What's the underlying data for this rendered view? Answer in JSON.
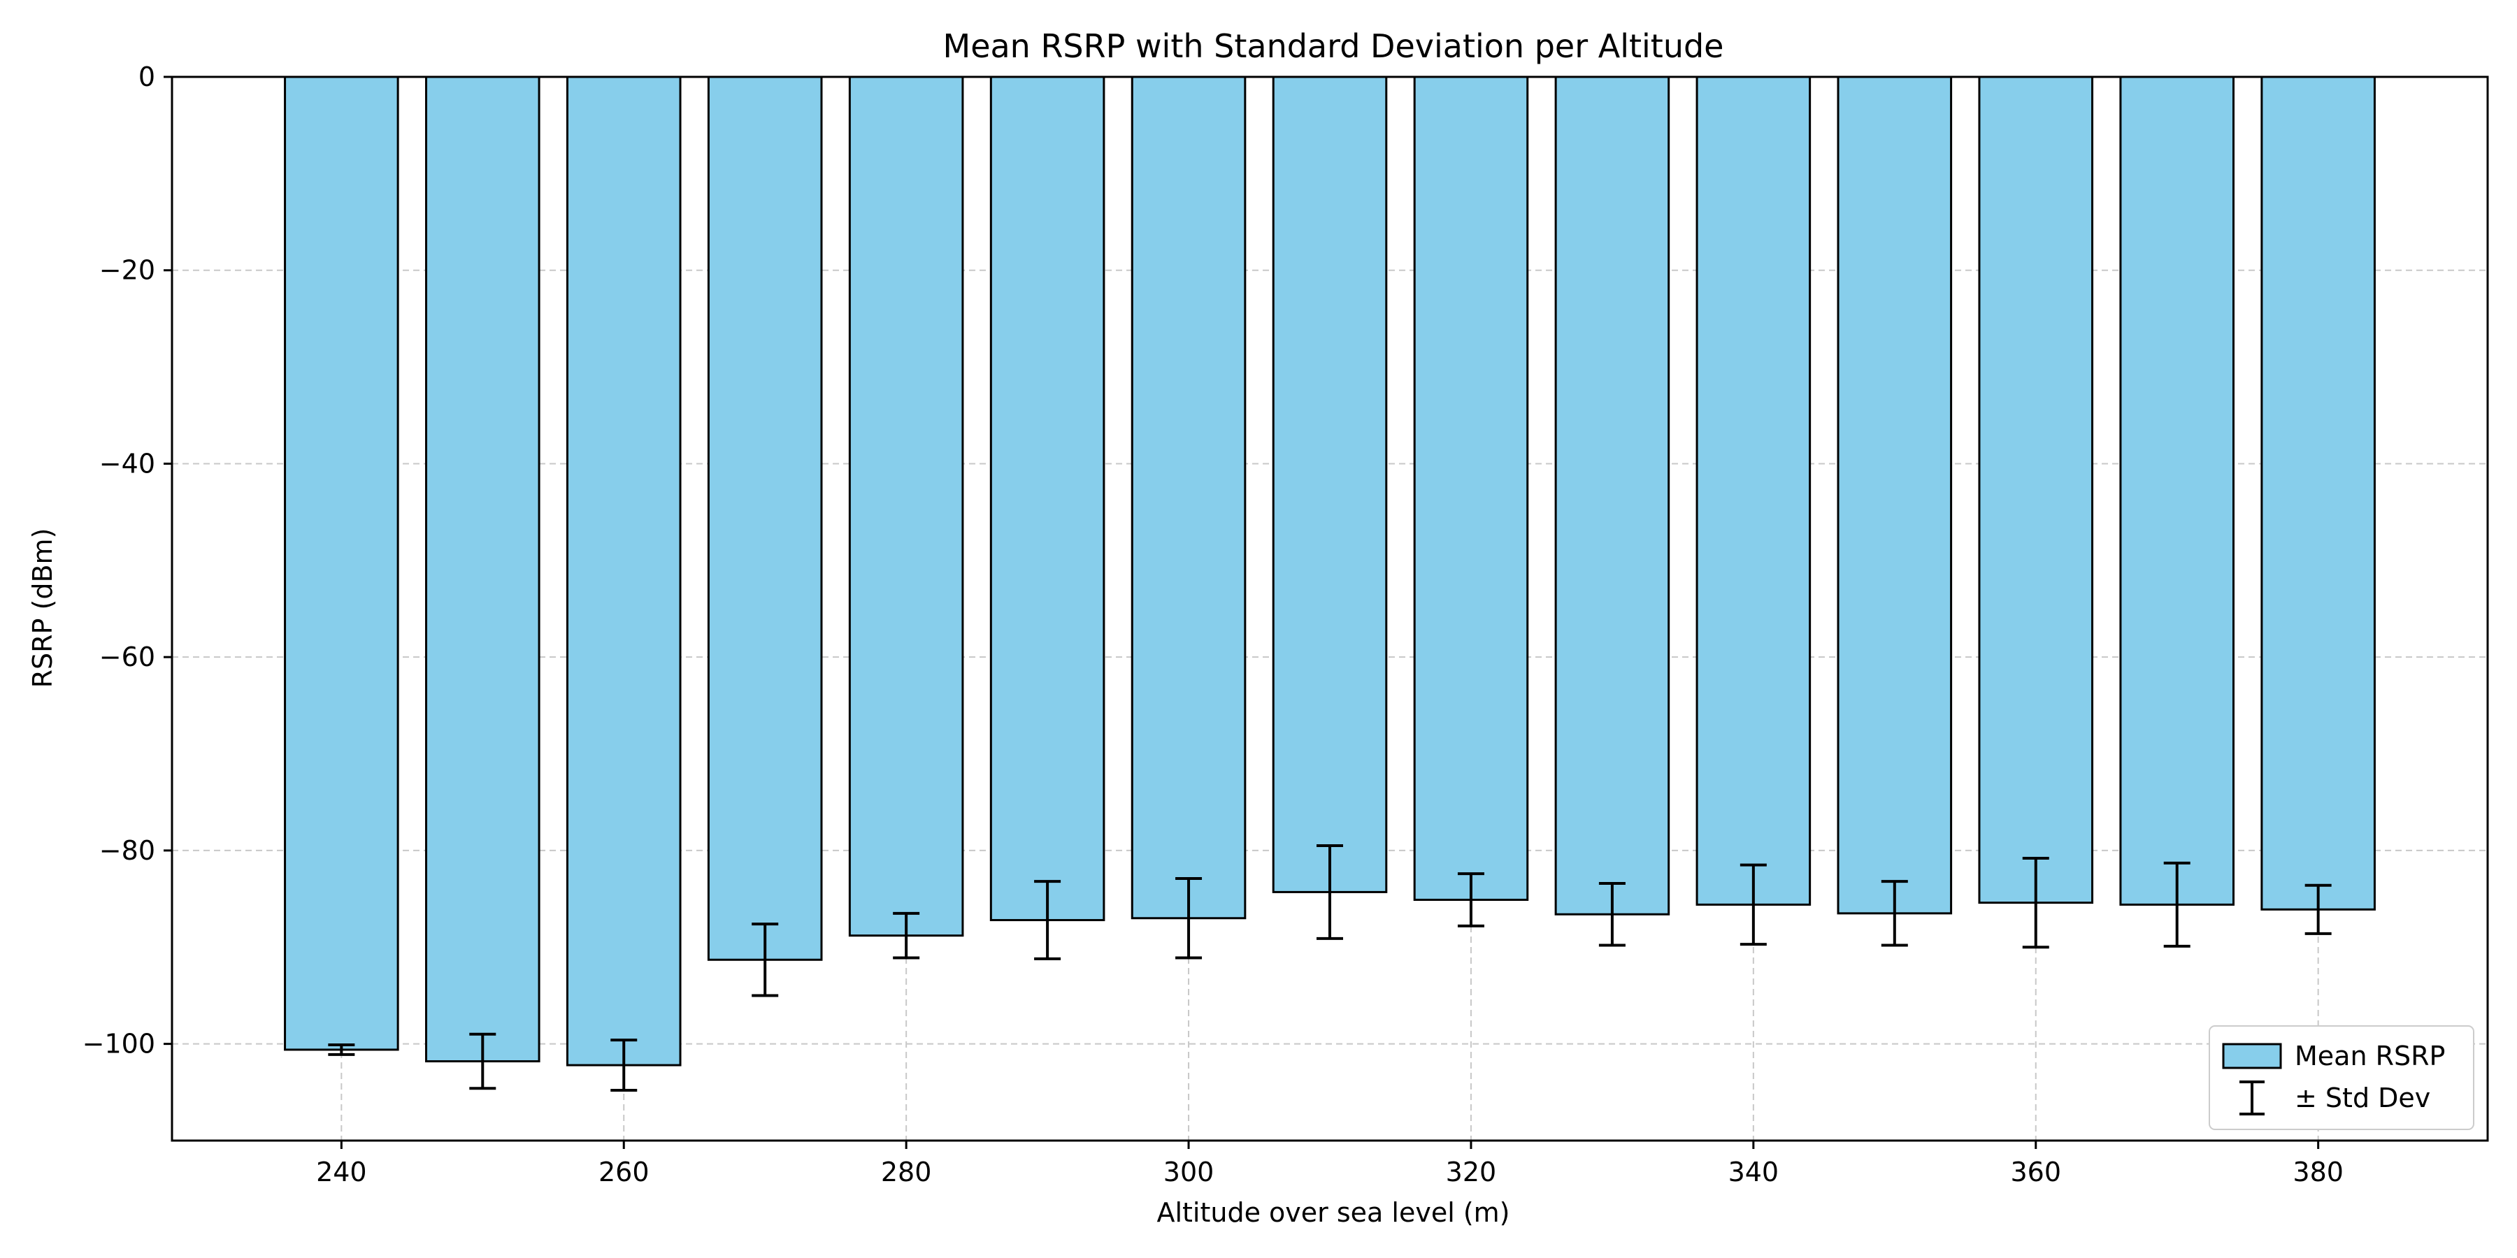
{
  "chart_data": {
    "type": "bar",
    "title": "Mean RSRP with Standard Deviation per Altitude",
    "xlabel": "Altitude over sea level (m)",
    "ylabel": "RSRP (dBm)",
    "x": [
      240,
      250,
      260,
      270,
      280,
      290,
      300,
      310,
      320,
      330,
      340,
      350,
      360,
      370,
      380
    ],
    "values": [
      -100.6,
      -101.8,
      -102.2,
      -91.3,
      -88.8,
      -87.2,
      -87.0,
      -84.3,
      -85.1,
      -86.6,
      -85.6,
      -86.5,
      -85.4,
      -85.6,
      -86.1
    ],
    "errors": [
      0.5,
      2.8,
      2.6,
      3.7,
      2.3,
      4.0,
      4.1,
      4.8,
      2.7,
      3.2,
      4.1,
      3.3,
      4.6,
      4.3,
      2.5
    ],
    "xlim": [
      228,
      392
    ],
    "ylim": [
      -110,
      0
    ],
    "xticks": [
      240,
      260,
      280,
      300,
      320,
      340,
      360,
      380
    ],
    "yticks": [
      0,
      -20,
      -40,
      -60,
      -80,
      -100
    ],
    "grid": true,
    "legend": {
      "position": "lower-right",
      "entries": [
        "Mean RSRP",
        "± Std Dev"
      ]
    },
    "colors": {
      "bar_fill": "#87CEEB",
      "bar_edge": "#000000",
      "error_bar": "#000000",
      "grid": "#c8c8c8"
    }
  }
}
